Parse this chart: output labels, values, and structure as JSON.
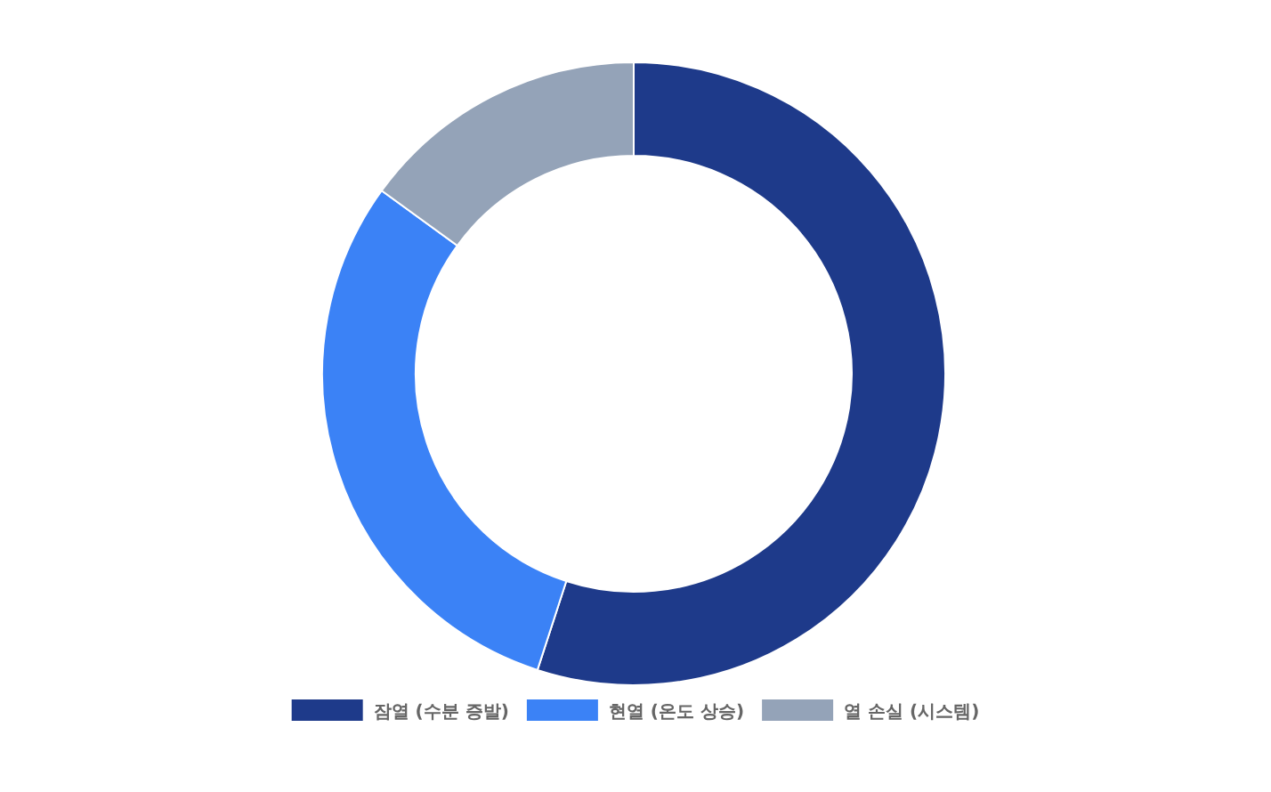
{
  "chart_data": {
    "type": "donut",
    "categories": [
      "잠열 (수분 증발)",
      "현열 (온도 상승)",
      "열 손실 (시스템)"
    ],
    "values": [
      55,
      30,
      15
    ],
    "colors": [
      "#1e3a8a",
      "#3b82f6",
      "#94a3b8"
    ],
    "legend": "bottom"
  }
}
